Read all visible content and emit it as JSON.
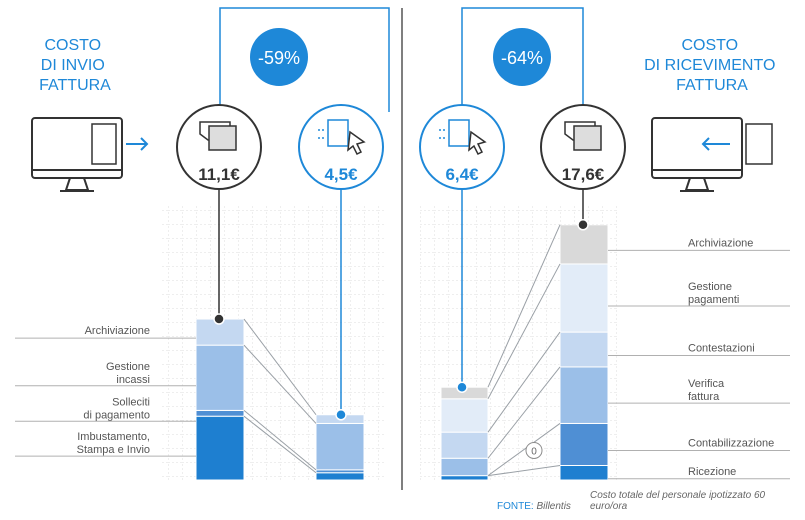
{
  "colors": {
    "accent": "#1e88d8",
    "dark": "#333333",
    "label": "#555555",
    "grid": "#dcdcdc",
    "connector": "#9aa0a6"
  },
  "left": {
    "title_lines": [
      "COSTO",
      "DI INVIO",
      "FATTURA"
    ],
    "icons": [
      "monitor-send-icon",
      "paper-envelope-icon",
      "digital-document-cursor-icon"
    ]
  },
  "right": {
    "title_lines": [
      "COSTO",
      "DI RICEVIMENTO",
      "FATTURA"
    ],
    "icons": [
      "digital-document-cursor-icon",
      "paper-envelope-icon",
      "monitor-receive-icon"
    ]
  },
  "footer": {
    "source_label": "FONTE:",
    "source_name": "Billentis",
    "note": "Costo totale del personale ipotizzato 60 euro/ora"
  },
  "chart_data": [
    {
      "type": "bar",
      "title": "COSTO DI INVIO FATTURA",
      "unit": "€",
      "stacked": true,
      "categories": [
        "11,1€",
        "4,5€"
      ],
      "totals": [
        11.1,
        4.5
      ],
      "reduction_label": "-59%",
      "series": [
        {
          "name": "Imbustamento, Stampa e Invio",
          "display": "Imbustamento,\nStampa e Invio",
          "values": [
            4.4,
            0.5
          ],
          "color": "#1e7fd0"
        },
        {
          "name": "Solleciti di pagamento",
          "display": "Solleciti\ndi pagamento",
          "values": [
            0.4,
            0.2
          ],
          "color": "#4f8fd4"
        },
        {
          "name": "Gestione incassi",
          "display": "Gestione\nincassi",
          "values": [
            4.5,
            3.2
          ],
          "color": "#9bbfe8"
        },
        {
          "name": "Archiviazione",
          "display": "Archiviazione",
          "values": [
            1.8,
            0.6
          ],
          "color": "#c4d8f1"
        }
      ]
    },
    {
      "type": "bar",
      "title": "COSTO DI RICEVIMENTO FATTURA",
      "unit": "€",
      "stacked": true,
      "categories": [
        "6,4€",
        "17,6€"
      ],
      "totals": [
        6.4,
        17.6
      ],
      "reduction_label": "-64%",
      "series": [
        {
          "name": "Ricezione",
          "display": "Ricezione",
          "values": [
            0.3,
            1.0
          ],
          "color": "#1e7fd0"
        },
        {
          "name": "Contabilizzazione",
          "display": "Contabilizzazione",
          "marker": "0",
          "values": [
            0,
            2.9
          ],
          "color": "#4f8fd4"
        },
        {
          "name": "Verifica fattura",
          "display": "Verifica\nfattura",
          "values": [
            1.2,
            3.9
          ],
          "color": "#9bbfe8"
        },
        {
          "name": "Contestazioni",
          "display": "Contestazioni",
          "values": [
            1.8,
            2.4
          ],
          "color": "#c4d8f1"
        },
        {
          "name": "Gestione pagamenti",
          "display": "Gestione\npagamenti",
          "values": [
            2.3,
            4.7
          ],
          "color": "#e2ecf8"
        },
        {
          "name": "Archiviazione",
          "display": "Archiviazione",
          "values": [
            0.8,
            2.7
          ],
          "color": "#d9d9d9"
        }
      ]
    }
  ]
}
